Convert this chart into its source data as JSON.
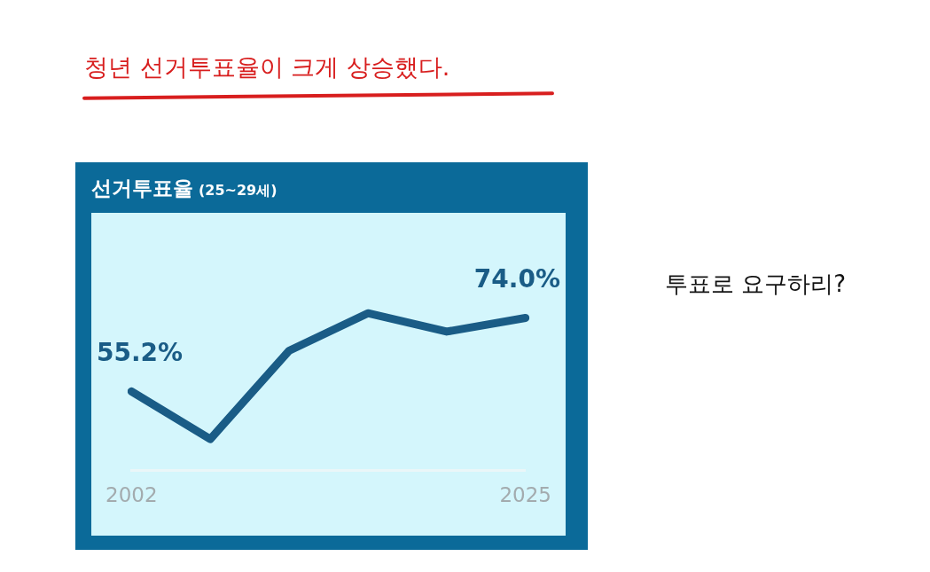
{
  "chart_data": {
    "type": "line",
    "title": "선거투표율",
    "subtitle": "(25~29세)",
    "categories": [
      "2002",
      null,
      null,
      null,
      null,
      "2025"
    ],
    "series": [
      {
        "color": "#1a5c86",
        "values": [
          55.2,
          43.0,
          65.6,
          75.2,
          70.5,
          74.0
        ],
        "value_labels": [
          "55.2%",
          null,
          null,
          null,
          null,
          "74.0%"
        ]
      }
    ],
    "marker": "none",
    "line_style": "solid",
    "grid": false,
    "legend": false,
    "tick_labels": "x",
    "annotations": [
      "청년 선거투표율이 크게 상승했다.",
      "투표로 요구하리?"
    ]
  }
}
